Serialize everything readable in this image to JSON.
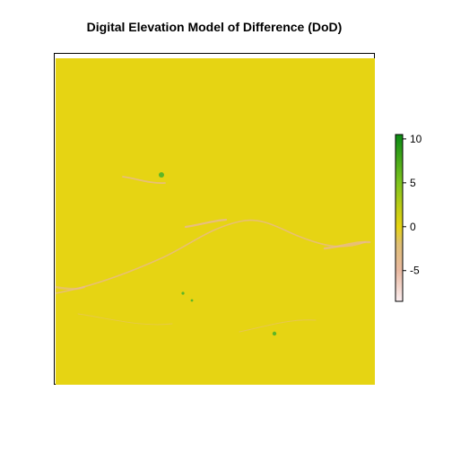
{
  "chart_data": {
    "type": "heatmap",
    "title": "Digital Elevation Model of Difference (DoD)",
    "xlabel": "",
    "ylabel": "",
    "value_range": [
      -8.5,
      10.5
    ],
    "colorbar": {
      "ticks": [
        10,
        5,
        0,
        -5
      ],
      "tick_labels": [
        "10",
        "5",
        "0",
        "-5"
      ],
      "colors": {
        "-8.5": "#fbeef0",
        "-5": "#e9b9a1",
        "-2": "#dfbf74",
        "0": "#e6d413",
        "2": "#c3cd16",
        "5": "#7ec41e",
        "10.5": "#0a8a14"
      }
    },
    "background_value": 0,
    "background_color": "#e6d413",
    "features": {
      "erosion_channel_color": "#e8b89a",
      "deposition_speck_color": "#44b02a"
    }
  }
}
